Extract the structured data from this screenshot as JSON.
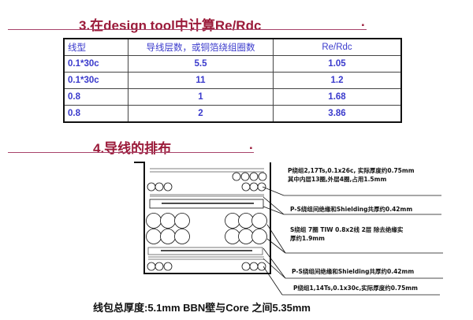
{
  "section3": {
    "title": "3.在design tool中计算Re/Rdc",
    "dot": "."
  },
  "table": {
    "headers": [
      "线型",
      "导线层数，或铜箔绕组圈数",
      "Re/Rdc"
    ],
    "rows": [
      [
        "0.1*30c",
        "5.5",
        "1.05"
      ],
      [
        "0.1*30c",
        "11",
        "1.2"
      ],
      [
        "0.8",
        "1",
        "1.68"
      ],
      [
        "0.8",
        "2",
        "3.86"
      ]
    ]
  },
  "section4": {
    "title": "4.导线的排布",
    "dot": "."
  },
  "diagram": {
    "labels": {
      "p2_line1": "P绕组2,17Ts,0.1x26c, 实际厚度约0.75mm",
      "p2_line2": "其中内层13圈,外层4圈,占用1.5mm",
      "ps1": "P-S绕组间绝缘和Shielding共厚约0.42mm",
      "s_line1": "S绕组 7圈 TIW 0.8x2线 2层 除去绝缘实",
      "s_line2": "厚约1.9mm",
      "ps2": "P-S绕组间绝缘和Shielding共厚约0.42mm",
      "p1": "P绕组1,14Ts,0.1x30c,实际厚度约0.75mm"
    }
  },
  "summary": "线包总厚度:5.1mm  BBN壁与Core 之间5.35mm"
}
